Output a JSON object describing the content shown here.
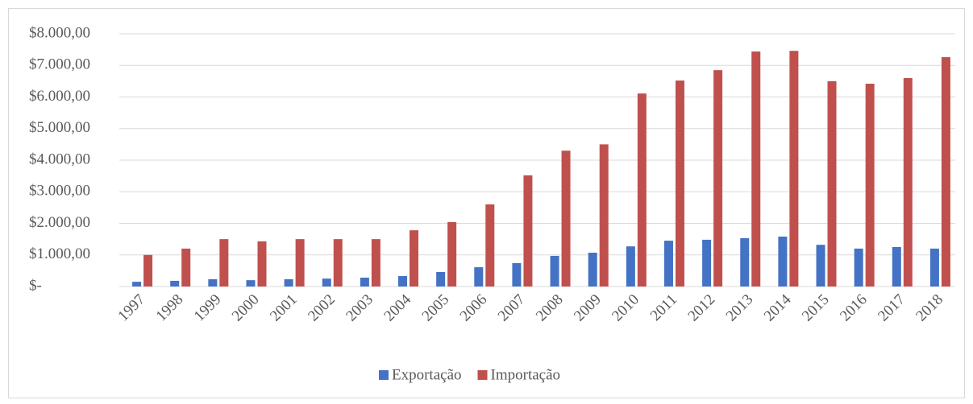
{
  "chart_data": {
    "type": "bar",
    "categories": [
      "1997",
      "1998",
      "1999",
      "2000",
      "2001",
      "2002",
      "2003",
      "2004",
      "2005",
      "2006",
      "2007",
      "2008",
      "2009",
      "2010",
      "2011",
      "2012",
      "2013",
      "2014",
      "2015",
      "2016",
      "2017",
      "2018"
    ],
    "series": [
      {
        "name": "Exportação",
        "color": "#4472c4",
        "values": [
          150,
          180,
          230,
          200,
          230,
          250,
          280,
          330,
          460,
          610,
          740,
          970,
          1070,
          1270,
          1450,
          1480,
          1530,
          1580,
          1320,
          1200,
          1250,
          1200
        ]
      },
      {
        "name": "Importação",
        "color": "#c0504d",
        "values": [
          1000,
          1200,
          1500,
          1430,
          1500,
          1500,
          1500,
          1780,
          2040,
          2600,
          3520,
          4300,
          4500,
          6110,
          6520,
          6850,
          7440,
          7460,
          6500,
          6420,
          6600,
          7260
        ]
      }
    ],
    "ylim": [
      0,
      8000
    ],
    "yticks": [
      {
        "value": 0,
        "label": "$-"
      },
      {
        "value": 1000,
        "label": "$1.000,00"
      },
      {
        "value": 2000,
        "label": "$2.000,00"
      },
      {
        "value": 3000,
        "label": "$3.000,00"
      },
      {
        "value": 4000,
        "label": "$4.000,00"
      },
      {
        "value": 5000,
        "label": "$5.000,00"
      },
      {
        "value": 6000,
        "label": "$6.000,00"
      },
      {
        "value": 7000,
        "label": "$7.000,00"
      },
      {
        "value": 8000,
        "label": "$8.000,00"
      }
    ],
    "grid": true,
    "legend": "bottom"
  }
}
